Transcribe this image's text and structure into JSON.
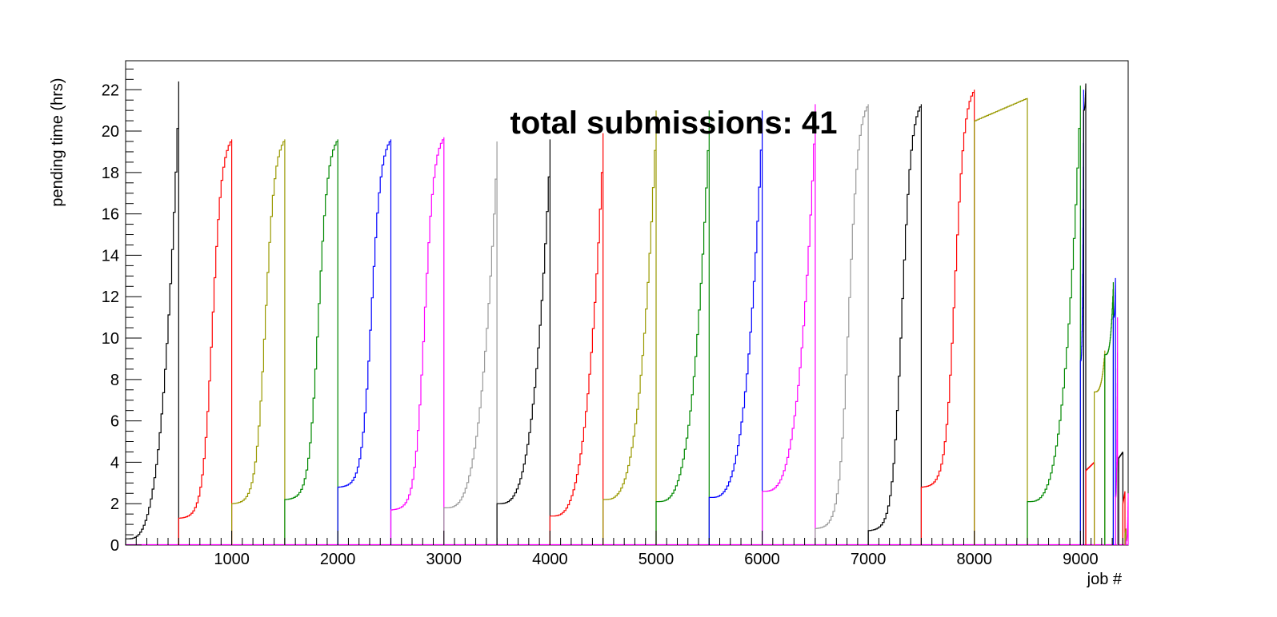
{
  "chart_data": {
    "type": "line",
    "title": "total submissions: 41",
    "xlabel": "job #",
    "ylabel": "pending time (hrs)",
    "xlim": [
      0,
      9450
    ],
    "ylim": [
      0,
      23.4
    ],
    "xticks": [
      1000,
      2000,
      3000,
      4000,
      5000,
      6000,
      7000,
      8000,
      9000
    ],
    "yticks": [
      0,
      2,
      4,
      6,
      8,
      10,
      12,
      14,
      16,
      18,
      20,
      22
    ],
    "grid": false,
    "legend": "none",
    "colors": [
      "#000000",
      "#ff0000",
      "#999900",
      "#008800",
      "#0000ff",
      "#ff00ff",
      "#999999"
    ],
    "series": [
      {
        "color": "#000000",
        "start": 0,
        "end": 500,
        "yStart": 0.3,
        "yEnd": 22.4,
        "shape": "curve"
      },
      {
        "color": "#ff0000",
        "start": 500,
        "end": 1000,
        "yStart": 1.3,
        "yEnd": 19.6,
        "shape": "s"
      },
      {
        "color": "#999900",
        "start": 1000,
        "end": 1500,
        "yStart": 2.0,
        "yEnd": 19.6,
        "shape": "s"
      },
      {
        "color": "#008800",
        "start": 1500,
        "end": 2000,
        "yStart": 2.2,
        "yEnd": 19.6,
        "shape": "s"
      },
      {
        "color": "#0000ff",
        "start": 2000,
        "end": 2500,
        "yStart": 2.8,
        "yEnd": 19.6,
        "shape": "s"
      },
      {
        "color": "#ff00ff",
        "start": 2500,
        "end": 3000,
        "yStart": 1.7,
        "yEnd": 19.7,
        "shape": "s"
      },
      {
        "color": "#999999",
        "start": 3000,
        "end": 3500,
        "yStart": 1.8,
        "yEnd": 19.5,
        "shape": "curve"
      },
      {
        "color": "#000000",
        "start": 3500,
        "end": 4000,
        "yStart": 2.0,
        "yEnd": 19.6,
        "shape": "curve"
      },
      {
        "color": "#ff0000",
        "start": 4000,
        "end": 4500,
        "yStart": 1.4,
        "yEnd": 19.9,
        "shape": "curve"
      },
      {
        "color": "#999900",
        "start": 4500,
        "end": 5000,
        "yStart": 2.2,
        "yEnd": 21.0,
        "shape": "curve"
      },
      {
        "color": "#008800",
        "start": 5000,
        "end": 5500,
        "yStart": 2.1,
        "yEnd": 21.0,
        "shape": "curve"
      },
      {
        "color": "#0000ff",
        "start": 5500,
        "end": 6000,
        "yStart": 2.3,
        "yEnd": 21.0,
        "shape": "curve"
      },
      {
        "color": "#ff00ff",
        "start": 6000,
        "end": 6500,
        "yStart": 2.6,
        "yEnd": 21.3,
        "shape": "curve"
      },
      {
        "color": "#999999",
        "start": 6500,
        "end": 7000,
        "yStart": 0.8,
        "yEnd": 21.3,
        "shape": "s"
      },
      {
        "color": "#000000",
        "start": 7000,
        "end": 7500,
        "yStart": 0.7,
        "yEnd": 21.3,
        "shape": "s"
      },
      {
        "color": "#ff0000",
        "start": 7500,
        "end": 8000,
        "yStart": 2.8,
        "yEnd": 22.0,
        "shape": "s"
      },
      {
        "color": "#999900",
        "start": 8000,
        "end": 8500,
        "yStart": 20.5,
        "yEnd": 21.6,
        "shape": "flat"
      },
      {
        "color": "#008800",
        "start": 8500,
        "end": 9000,
        "yStart": 2.1,
        "yEnd": 22.2,
        "shape": "curve"
      },
      {
        "color": "#0000ff",
        "start": 9000,
        "end": 9030,
        "yStart": 8.9,
        "yEnd": 22.0,
        "shape": "curve"
      },
      {
        "color": "#000000",
        "start": 9030,
        "end": 9050,
        "yStart": 21.0,
        "yEnd": 22.3,
        "shape": "curve"
      },
      {
        "color": "#ff0000",
        "start": 9050,
        "end": 9130,
        "yStart": 3.6,
        "yEnd": 4.0,
        "shape": "flat"
      },
      {
        "color": "#999900",
        "start": 9130,
        "end": 9230,
        "yStart": 7.4,
        "yEnd": 9.4,
        "shape": "curve"
      },
      {
        "color": "#008800",
        "start": 9230,
        "end": 9310,
        "yStart": 9.2,
        "yEnd": 12.7,
        "shape": "curve"
      },
      {
        "color": "#0000ff",
        "start": 9310,
        "end": 9330,
        "yStart": 11.0,
        "yEnd": 12.9,
        "shape": "curve"
      },
      {
        "color": "#ff00ff",
        "start": 9330,
        "end": 9350,
        "yStart": 2.3,
        "yEnd": 11.0,
        "shape": "curve"
      },
      {
        "color": "#999999",
        "start": 9350,
        "end": 9360,
        "yStart": 3.5,
        "yEnd": 4.2,
        "shape": "flat"
      },
      {
        "color": "#000000",
        "start": 9360,
        "end": 9400,
        "yStart": 4.2,
        "yEnd": 4.5,
        "shape": "flat"
      },
      {
        "color": "#ff0000",
        "start": 9400,
        "end": 9420,
        "yStart": 2.0,
        "yEnd": 2.6,
        "shape": "flat"
      },
      {
        "color": "#999900",
        "start": 9420,
        "end": 9430,
        "yStart": 0.5,
        "yEnd": 0.8,
        "shape": "flat"
      },
      {
        "color": "#ff00ff",
        "start": 9430,
        "end": 9450,
        "yStart": 0.2,
        "yEnd": 2.5,
        "shape": "curve"
      }
    ]
  }
}
